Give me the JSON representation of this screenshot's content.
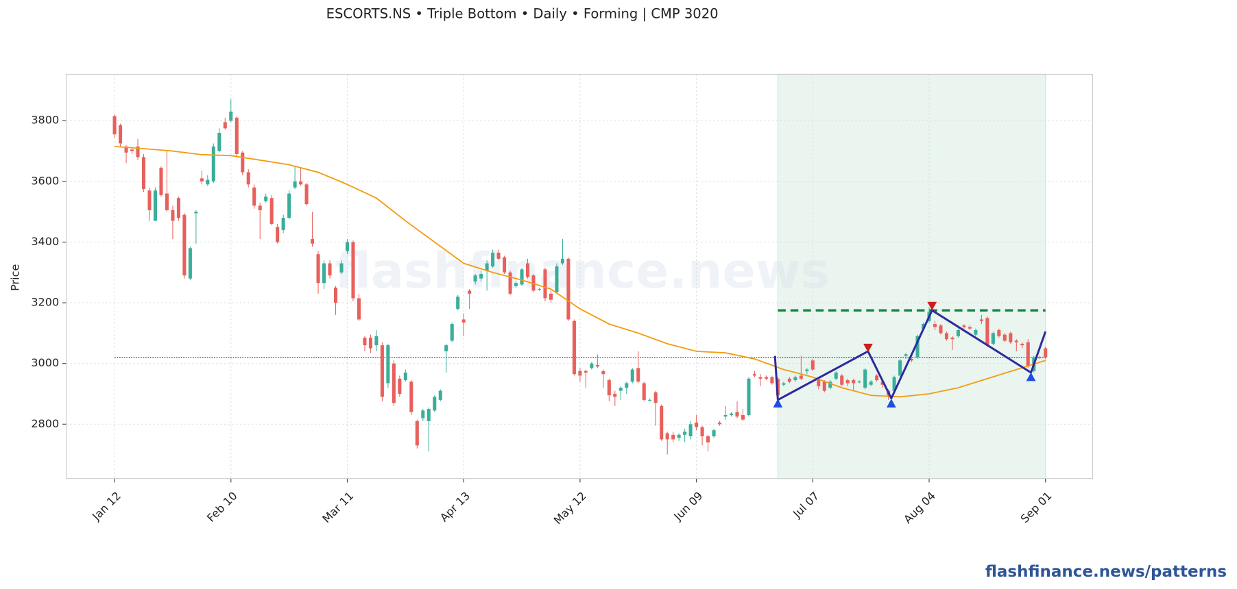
{
  "chart_data": {
    "type": "candlestick",
    "title": "ESCORTS.NS  •  Triple Bottom  •  Daily  •  Forming  |  CMP 3020",
    "ylabel": "Price",
    "watermark": "flashfinance.news",
    "footer": "flashfinance.news/patterns",
    "up_color": "#3aae9a",
    "down_color": "#e8605c",
    "grid": true,
    "xlim": [
      -8.3,
      168.1
    ],
    "ylim": [
      2621,
      3953
    ],
    "yticks": [
      2800,
      3000,
      3200,
      3400,
      3600,
      3800
    ],
    "xticks": [
      {
        "value": 0,
        "label": "Jan 12"
      },
      {
        "value": 20,
        "label": "Feb 10"
      },
      {
        "value": 40,
        "label": "Mar 11"
      },
      {
        "value": 60,
        "label": "Apr 13"
      },
      {
        "value": 80,
        "label": "May 12"
      },
      {
        "value": 100,
        "label": "Jun 09"
      },
      {
        "value": 120,
        "label": "Jul 07"
      },
      {
        "value": 140,
        "label": "Aug 04"
      },
      {
        "value": 160,
        "label": "Sep 01"
      }
    ],
    "candles": [
      [
        3815,
        3820,
        3745,
        3755
      ],
      [
        3785,
        3790,
        3715,
        3725
      ],
      [
        3715,
        3720,
        3660,
        3695
      ],
      [
        3705,
        3710,
        3690,
        3700
      ],
      [
        3715,
        3740,
        3670,
        3680
      ],
      [
        3680,
        3690,
        3565,
        3575
      ],
      [
        3570,
        3580,
        3470,
        3505
      ],
      [
        3470,
        3580,
        3470,
        3570
      ],
      [
        3645,
        3650,
        3550,
        3555
      ],
      [
        3560,
        3700,
        3500,
        3505
      ],
      [
        3505,
        3520,
        3410,
        3470
      ],
      [
        3545,
        3550,
        3470,
        3480
      ],
      [
        3490,
        3495,
        3280,
        3290
      ],
      [
        3280,
        3385,
        3275,
        3380
      ],
      [
        3495,
        3505,
        3395,
        3500
      ],
      [
        3610,
        3635,
        3590,
        3600
      ],
      [
        3590,
        3620,
        3585,
        3605
      ],
      [
        3600,
        3725,
        3595,
        3715
      ],
      [
        3700,
        3775,
        3695,
        3760
      ],
      [
        3795,
        3810,
        3770,
        3775
      ],
      [
        3800,
        3870,
        3795,
        3830
      ],
      [
        3810,
        3815,
        3680,
        3690
      ],
      [
        3695,
        3700,
        3620,
        3630
      ],
      [
        3630,
        3640,
        3580,
        3590
      ],
      [
        3580,
        3590,
        3510,
        3520
      ],
      [
        3520,
        3530,
        3410,
        3505
      ],
      [
        3535,
        3560,
        3530,
        3550
      ],
      [
        3545,
        3555,
        3455,
        3460
      ],
      [
        3450,
        3460,
        3395,
        3400
      ],
      [
        3440,
        3490,
        3430,
        3480
      ],
      [
        3480,
        3570,
        3475,
        3560
      ],
      [
        3580,
        3650,
        3575,
        3600
      ],
      [
        3600,
        3645,
        3585,
        3590
      ],
      [
        3590,
        3595,
        3520,
        3525
      ],
      [
        3410,
        3500,
        3385,
        3395
      ],
      [
        3360,
        3370,
        3230,
        3265
      ],
      [
        3265,
        3340,
        3245,
        3330
      ],
      [
        3330,
        3340,
        3280,
        3290
      ],
      [
        3250,
        3255,
        3160,
        3200
      ],
      [
        3300,
        3340,
        3295,
        3330
      ],
      [
        3370,
        3410,
        3360,
        3400
      ],
      [
        3400,
        3405,
        3205,
        3215
      ],
      [
        3215,
        3230,
        3140,
        3145
      ],
      [
        3085,
        3090,
        3040,
        3060
      ],
      [
        3085,
        3095,
        3035,
        3050
      ],
      [
        3060,
        3110,
        3040,
        3090
      ],
      [
        3060,
        3070,
        2875,
        2890
      ],
      [
        2935,
        3065,
        2920,
        3060
      ],
      [
        3000,
        3010,
        2860,
        2870
      ],
      [
        2950,
        2960,
        2890,
        2900
      ],
      [
        2945,
        2980,
        2940,
        2970
      ],
      [
        2940,
        2945,
        2830,
        2840
      ],
      [
        2810,
        2815,
        2720,
        2730
      ],
      [
        2820,
        2850,
        2810,
        2845
      ],
      [
        2810,
        2855,
        2710,
        2850
      ],
      [
        2845,
        2895,
        2840,
        2890
      ],
      [
        2880,
        2915,
        2875,
        2910
      ],
      [
        3040,
        3065,
        2970,
        3060
      ],
      [
        3075,
        3135,
        3070,
        3130
      ],
      [
        3180,
        3225,
        3175,
        3220
      ],
      [
        3145,
        3165,
        3090,
        3135
      ],
      [
        3240,
        3245,
        3180,
        3230
      ],
      [
        3270,
        3295,
        3260,
        3290
      ],
      [
        3280,
        3305,
        3270,
        3295
      ],
      [
        3305,
        3340,
        3240,
        3330
      ],
      [
        3320,
        3375,
        3315,
        3365
      ],
      [
        3365,
        3375,
        3340,
        3345
      ],
      [
        3350,
        3355,
        3295,
        3300
      ],
      [
        3300,
        3305,
        3225,
        3230
      ],
      [
        3255,
        3270,
        3250,
        3265
      ],
      [
        3260,
        3315,
        3255,
        3310
      ],
      [
        3330,
        3345,
        3280,
        3285
      ],
      [
        3290,
        3295,
        3235,
        3240
      ],
      [
        3245,
        3250,
        3240,
        3245
      ],
      [
        3310,
        3315,
        3205,
        3215
      ],
      [
        3230,
        3240,
        3200,
        3210
      ],
      [
        3235,
        3330,
        3230,
        3320
      ],
      [
        3330,
        3410,
        3325,
        3345
      ],
      [
        3345,
        3350,
        3140,
        3145
      ],
      [
        3140,
        3145,
        2960,
        2965
      ],
      [
        2975,
        2985,
        2940,
        2960
      ],
      [
        2975,
        2980,
        2920,
        2970
      ],
      [
        2985,
        3005,
        2980,
        3000
      ],
      [
        2995,
        3030,
        2985,
        2990
      ],
      [
        2975,
        2980,
        2920,
        2965
      ],
      [
        2945,
        2950,
        2875,
        2895
      ],
      [
        2900,
        2910,
        2860,
        2890
      ],
      [
        2910,
        2925,
        2880,
        2920
      ],
      [
        2920,
        2940,
        2900,
        2935
      ],
      [
        2940,
        2985,
        2935,
        2980
      ],
      [
        2985,
        3040,
        2935,
        2940
      ],
      [
        2935,
        2940,
        2875,
        2880
      ],
      [
        2880,
        2885,
        2875,
        2880
      ],
      [
        2905,
        2910,
        2795,
        2870
      ],
      [
        2860,
        2865,
        2745,
        2750
      ],
      [
        2770,
        2775,
        2700,
        2750
      ],
      [
        2765,
        2775,
        2740,
        2750
      ],
      [
        2755,
        2770,
        2745,
        2765
      ],
      [
        2765,
        2785,
        2740,
        2775
      ],
      [
        2760,
        2810,
        2750,
        2800
      ],
      [
        2805,
        2830,
        2780,
        2790
      ],
      [
        2790,
        2795,
        2730,
        2760
      ],
      [
        2760,
        2765,
        2710,
        2740
      ],
      [
        2760,
        2785,
        2755,
        2780
      ],
      [
        2805,
        2810,
        2795,
        2800
      ],
      [
        2825,
        2860,
        2815,
        2830
      ],
      [
        2830,
        2840,
        2825,
        2835
      ],
      [
        2840,
        2875,
        2820,
        2825
      ],
      [
        2830,
        2850,
        2810,
        2815
      ],
      [
        2830,
        2955,
        2825,
        2950
      ],
      [
        2965,
        2975,
        2955,
        2960
      ],
      [
        2955,
        2965,
        2925,
        2950
      ],
      [
        2955,
        2960,
        2945,
        2950
      ],
      [
        2955,
        2960,
        2930,
        2935
      ],
      [
        2950,
        2955,
        2885,
        2895
      ],
      [
        2930,
        2940,
        2925,
        2935
      ],
      [
        2950,
        2955,
        2935,
        2940
      ],
      [
        2945,
        2960,
        2940,
        2955
      ],
      [
        2960,
        3025,
        2945,
        2950
      ],
      [
        2975,
        2985,
        2965,
        2980
      ],
      [
        3010,
        3015,
        2975,
        2980
      ],
      [
        2945,
        2950,
        2915,
        2925
      ],
      [
        2940,
        2945,
        2905,
        2910
      ],
      [
        2920,
        2945,
        2915,
        2940
      ],
      [
        2950,
        2975,
        2945,
        2970
      ],
      [
        2960,
        2965,
        2925,
        2930
      ],
      [
        2945,
        2950,
        2925,
        2935
      ],
      [
        2945,
        2950,
        2910,
        2935
      ],
      [
        2940,
        2945,
        2935,
        2940
      ],
      [
        2920,
        2985,
        2915,
        2980
      ],
      [
        2930,
        2945,
        2925,
        2940
      ],
      [
        2960,
        2965,
        2940,
        2945
      ],
      [
        2940,
        2945,
        2920,
        2930
      ],
      [
        2910,
        2915,
        2880,
        2895
      ],
      [
        2910,
        2960,
        2905,
        2955
      ],
      [
        2960,
        3015,
        2955,
        3010
      ],
      [
        3025,
        3035,
        3015,
        3030
      ],
      [
        3015,
        3020,
        3005,
        3010
      ],
      [
        3020,
        3095,
        3015,
        3090
      ],
      [
        3115,
        3135,
        3110,
        3130
      ],
      [
        3140,
        3185,
        3135,
        3170
      ],
      [
        3130,
        3140,
        3110,
        3120
      ],
      [
        3125,
        3130,
        3095,
        3100
      ],
      [
        3100,
        3105,
        3075,
        3080
      ],
      [
        3085,
        3090,
        3045,
        3080
      ],
      [
        3090,
        3115,
        3085,
        3110
      ],
      [
        3125,
        3130,
        3115,
        3120
      ],
      [
        3120,
        3125,
        3110,
        3115
      ],
      [
        3095,
        3115,
        3090,
        3110
      ],
      [
        3145,
        3160,
        3130,
        3140
      ],
      [
        3150,
        3155,
        3055,
        3060
      ],
      [
        3065,
        3105,
        3060,
        3100
      ],
      [
        3110,
        3115,
        3085,
        3090
      ],
      [
        3095,
        3100,
        3070,
        3075
      ],
      [
        3100,
        3105,
        3065,
        3070
      ],
      [
        3075,
        3080,
        3040,
        3070
      ],
      [
        3065,
        3070,
        3050,
        3060
      ],
      [
        3070,
        3080,
        2985,
        2990
      ],
      [
        2975,
        3025,
        2970,
        3020
      ],
      [
        3020,
        3025,
        3015,
        3020
      ],
      [
        3050,
        3055,
        3015,
        3020
      ]
    ],
    "moving_average": {
      "color": "#f39c12",
      "x": [
        0,
        5,
        10,
        15,
        20,
        25,
        30,
        35,
        40,
        45,
        50,
        55,
        60,
        65,
        70,
        75,
        80,
        85,
        90,
        95,
        100,
        105,
        110,
        115,
        120,
        125,
        130,
        135,
        140,
        145,
        150,
        155,
        160
      ],
      "values": [
        3715,
        3708,
        3700,
        3688,
        3685,
        3670,
        3655,
        3630,
        3590,
        3545,
        3470,
        3400,
        3330,
        3300,
        3275,
        3245,
        3180,
        3130,
        3100,
        3065,
        3040,
        3035,
        3015,
        2980,
        2955,
        2920,
        2895,
        2890,
        2900,
        2920,
        2950,
        2980,
        3010
      ]
    },
    "cmp_line": {
      "value": 3020,
      "x": [
        0,
        160
      ],
      "color": "#555555"
    },
    "zone": {
      "x": [
        114,
        160
      ],
      "color": "#e9f5ee"
    },
    "resistance": {
      "value": 3175,
      "x": [
        114,
        160
      ],
      "color": "#14843f"
    },
    "pattern": {
      "color": "#2e2a9e",
      "x": [
        113.5,
        114,
        129.5,
        133.5,
        140.5,
        157.5,
        160
      ],
      "values": [
        3025,
        2880,
        3040,
        2885,
        3175,
        2970,
        3105
      ]
    },
    "troughs": {
      "color": "#1f4fe0",
      "x": [
        114,
        133.5,
        157.5
      ],
      "values": [
        2868,
        2868,
        2955
      ]
    },
    "peaks": {
      "color": "#cc1f1f",
      "x": [
        129.5,
        140.5
      ],
      "values": [
        3052,
        3190
      ]
    }
  }
}
